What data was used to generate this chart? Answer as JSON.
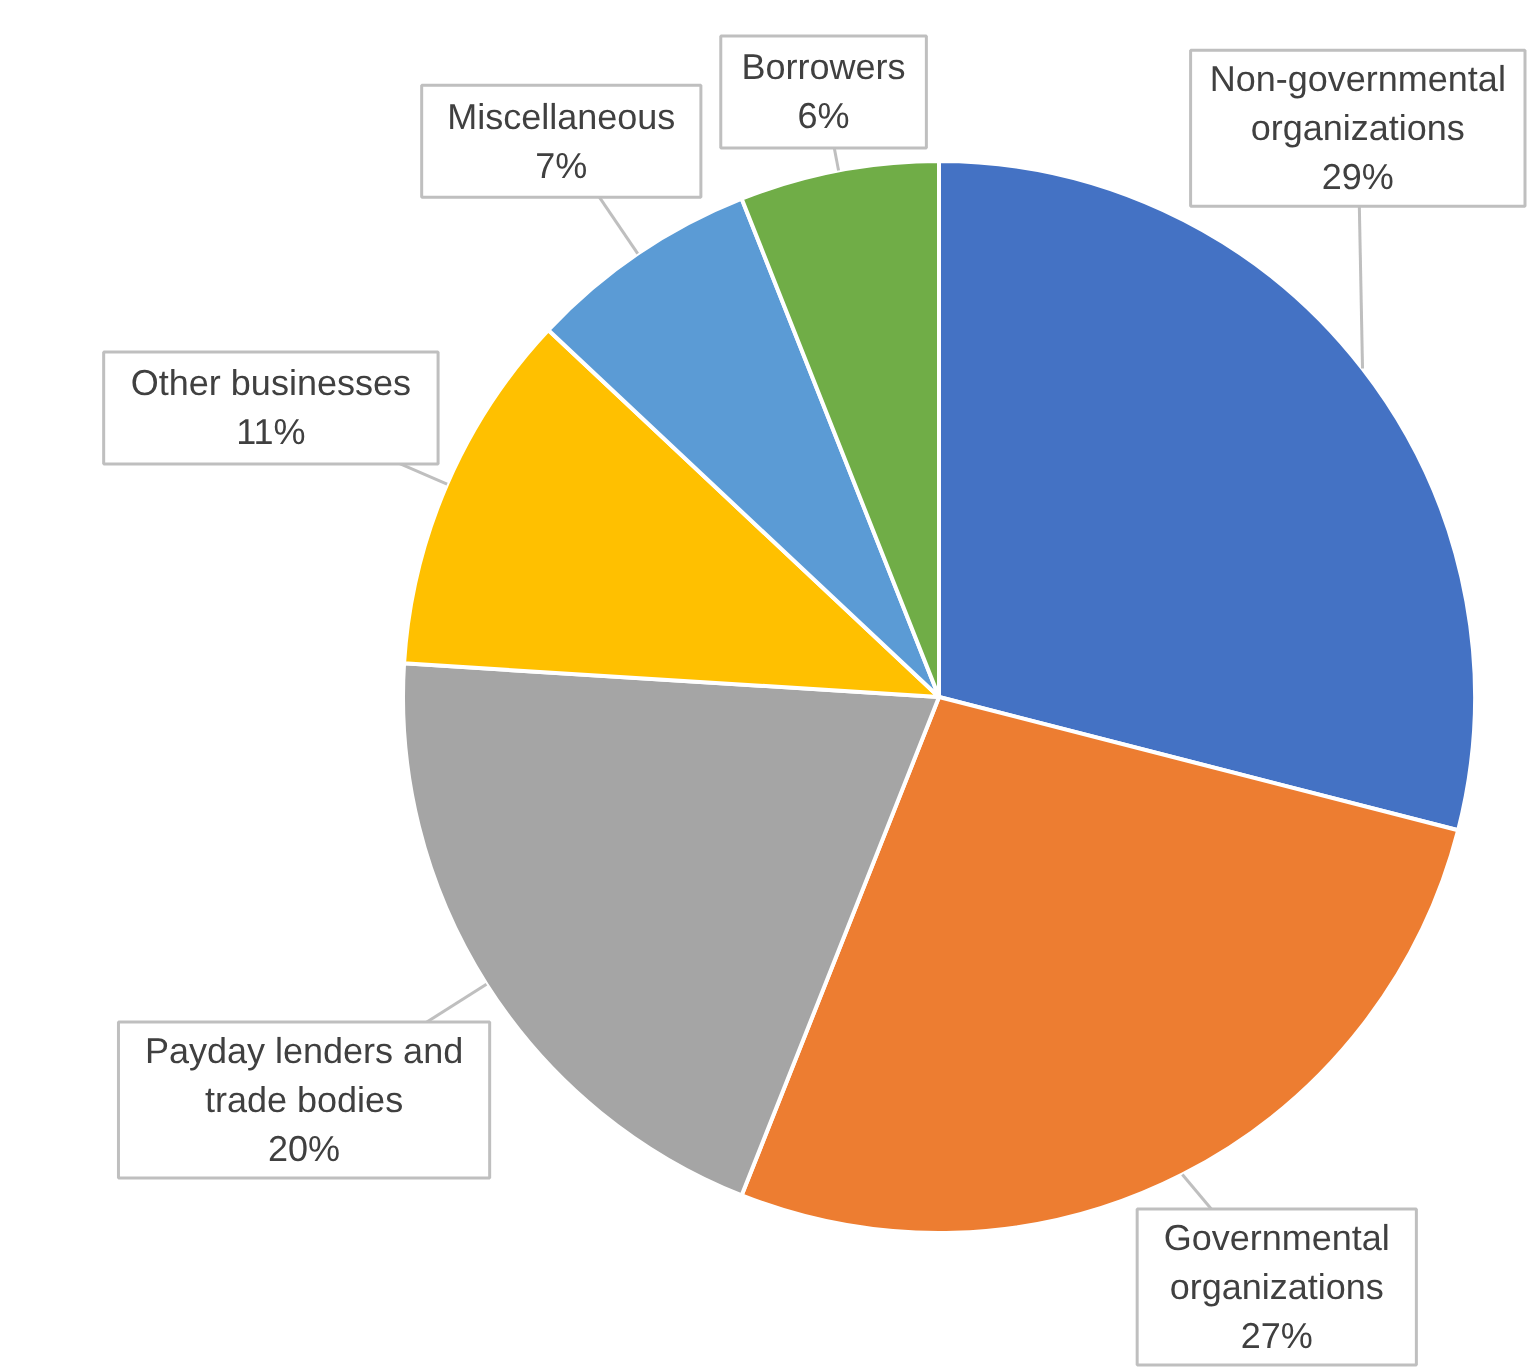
{
  "chart_data": {
    "type": "pie",
    "categories": [
      "Non-governmental organizations",
      "Governmental organizations",
      "Payday lenders and trade bodies",
      "Other businesses",
      "Miscellaneous",
      "Borrowers"
    ],
    "values": [
      29,
      27,
      20,
      11,
      7,
      6
    ],
    "value_labels": [
      "29%",
      "27%",
      "20%",
      "11%",
      "7%",
      "6%"
    ],
    "colors": [
      "#4472c4",
      "#ed7d31",
      "#a5a5a5",
      "#ffc000",
      "#5b9bd5",
      "#70ad47"
    ],
    "legend": false
  }
}
